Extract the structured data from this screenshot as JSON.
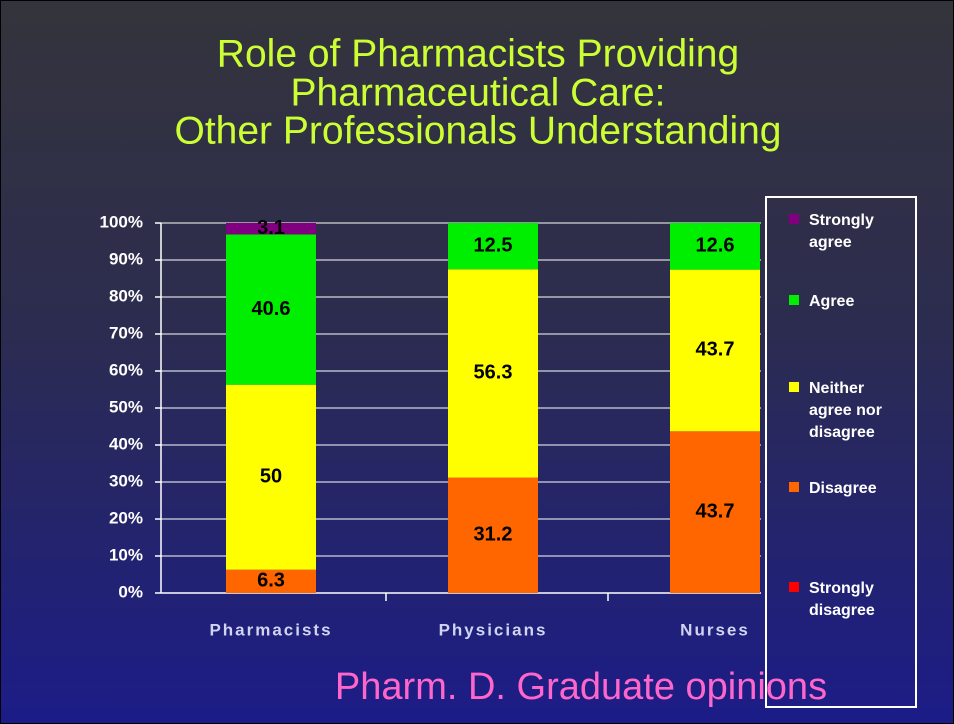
{
  "chart_data": {
    "type": "stacked_bar",
    "title": [
      "Role of Pharmacists Providing",
      "Pharmaceutical Care:",
      "Other Professionals Understanding"
    ],
    "subtitle": "Pharm. D. Graduate opinions",
    "categories": [
      "Pharmacists",
      "Physicians",
      "Nurses"
    ],
    "series": [
      {
        "name": "Strongly disagree",
        "color": "#ff0000",
        "values": [
          0,
          0,
          0
        ]
      },
      {
        "name": "Disagree",
        "color": "#ff6600",
        "values": [
          6.3,
          31.2,
          43.7
        ]
      },
      {
        "name": "Neither agree nor disagree",
        "color": "#ffff00",
        "values": [
          50,
          56.3,
          43.7
        ]
      },
      {
        "name": "Agree",
        "color": "#00ee00",
        "values": [
          40.6,
          12.5,
          12.6
        ]
      },
      {
        "name": "Strongly agree",
        "color": "#800080",
        "values": [
          3.1,
          0,
          0
        ]
      }
    ],
    "ylim": [
      0,
      100
    ],
    "yticks": [
      {
        "value": 0,
        "label": "0%"
      },
      {
        "value": 10,
        "label": "10%"
      },
      {
        "value": 20,
        "label": "20%"
      },
      {
        "value": 30,
        "label": "30%"
      },
      {
        "value": 40,
        "label": "40%"
      },
      {
        "value": 50,
        "label": "50%"
      },
      {
        "value": 60,
        "label": "60%"
      },
      {
        "value": 70,
        "label": "70%"
      },
      {
        "value": 80,
        "label": "80%"
      },
      {
        "value": 90,
        "label": "90%"
      },
      {
        "value": 100,
        "label": "100%"
      }
    ],
    "grid": true,
    "legend": "right"
  }
}
